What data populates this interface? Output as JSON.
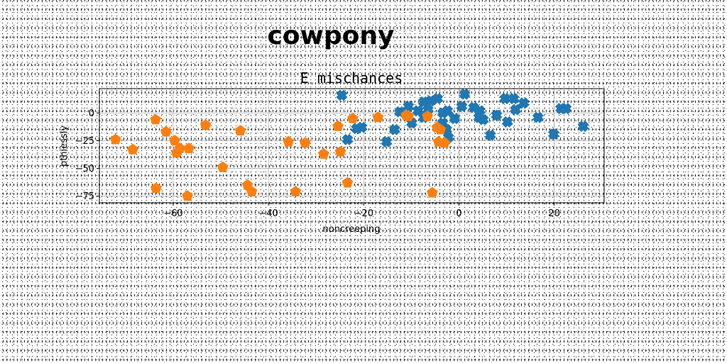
{
  "page_title": "cowpony",
  "chart_data": {
    "type": "scatter",
    "title": "E mischances",
    "xlabel": "noncreeping",
    "ylabel": "pthiessly",
    "xlim": [
      -75.5,
      30.5
    ],
    "ylim": [
      -81,
      22
    ],
    "xticks": [
      -60,
      -40,
      -20,
      0,
      20
    ],
    "xtick_labels": [
      "−60",
      "−40",
      "−20",
      "0",
      "20"
    ],
    "yticks": [
      -75,
      -50,
      -25,
      0
    ],
    "ytick_labels": [
      "−75",
      "−50",
      "−25",
      "0"
    ],
    "grid": true,
    "legend": "none",
    "series": [
      {
        "marker": "x",
        "color": "#1f77b4",
        "points": [
          [
            -24.6,
            16
          ],
          [
            1.2,
            17
          ],
          [
            9.7,
            13
          ],
          [
            11.5,
            13
          ],
          [
            13.6,
            9
          ],
          [
            -4.5,
            13
          ],
          [
            -5.9,
            11
          ],
          [
            -7.4,
            10
          ],
          [
            -2.4,
            2
          ],
          [
            3.1,
            5
          ],
          [
            4.4,
            2
          ],
          [
            0.6,
            6
          ],
          [
            -10.6,
            6
          ],
          [
            -12.4,
            1
          ],
          [
            -8.6,
            2
          ],
          [
            -9.9,
            -9
          ],
          [
            -7.4,
            -4
          ],
          [
            -3.4,
            -9
          ],
          [
            -2.6,
            -15
          ],
          [
            -2.2,
            -22
          ],
          [
            -13.5,
            -15
          ],
          [
            -15.2,
            -26
          ],
          [
            -20.4,
            -13
          ],
          [
            -21.5,
            -14
          ],
          [
            -23.4,
            -24
          ],
          [
            6.6,
            -20
          ],
          [
            7.9,
            -2
          ],
          [
            10.2,
            -8
          ],
          [
            11.9,
            3
          ],
          [
            16.6,
            -4
          ],
          [
            19.9,
            -19
          ],
          [
            21.4,
            4
          ],
          [
            22.5,
            4
          ],
          [
            26.1,
            -12
          ],
          [
            4.2,
            -4
          ],
          [
            5.1,
            -6
          ],
          [
            -0.9,
            -5
          ],
          [
            -6.5,
            3
          ],
          [
            -3.4,
            0
          ]
        ]
      },
      {
        "marker": "pentagon",
        "color": "#ff7f0e",
        "points": [
          [
            -72.1,
            -24
          ],
          [
            -68.5,
            -33
          ],
          [
            -63.7,
            -6
          ],
          [
            -61.5,
            -17
          ],
          [
            -59.7,
            -25
          ],
          [
            -59.3,
            -36
          ],
          [
            -58.6,
            -32
          ],
          [
            -56.7,
            -32
          ],
          [
            -53.2,
            -11
          ],
          [
            -63.6,
            -68
          ],
          [
            -57.0,
            -75
          ],
          [
            -49.6,
            -49
          ],
          [
            -45.9,
            -16
          ],
          [
            -44.4,
            -65
          ],
          [
            -43.5,
            -71
          ],
          [
            -35.8,
            -26
          ],
          [
            -34.3,
            -71
          ],
          [
            -32.3,
            -27
          ],
          [
            -28.4,
            -37
          ],
          [
            -25.4,
            -12
          ],
          [
            -24.9,
            -35
          ],
          [
            -23.4,
            -63
          ],
          [
            -22.3,
            -5
          ],
          [
            -17.0,
            -4
          ],
          [
            -11.1,
            -2
          ],
          [
            -10.6,
            -3
          ],
          [
            -6.6,
            -3
          ],
          [
            -4.6,
            -13
          ],
          [
            -3.9,
            -15
          ],
          [
            -4.3,
            -26
          ],
          [
            -3.0,
            -27
          ],
          [
            -5.6,
            -72
          ]
        ]
      }
    ]
  }
}
